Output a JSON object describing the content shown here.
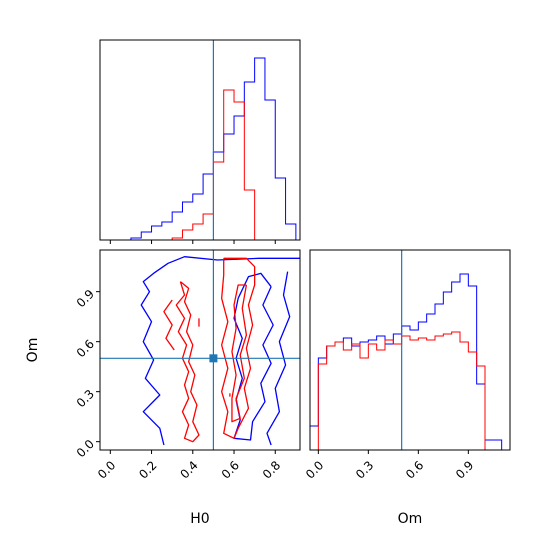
{
  "chart_data": {
    "type": "corner",
    "parameters": [
      "H0",
      "Om"
    ],
    "truth": {
      "H0": 0.5,
      "Om": 0.5
    },
    "colors": {
      "series_a": "#0000ff",
      "series_b": "#ff0000",
      "truth": "#1f77b4",
      "frame": "#000000"
    },
    "panels": [
      {
        "type": "histogram",
        "parameter": "H0",
        "xlim": [
          -0.05,
          0.92
        ],
        "ylim": [
          0,
          1.0
        ],
        "xticks": [
          0.0,
          0.2,
          0.4,
          0.6,
          0.8
        ],
        "show_tick_labels": false,
        "series": [
          {
            "color": "blue",
            "edges": [
              0.0,
              0.05,
              0.1,
              0.15,
              0.2,
              0.25,
              0.3,
              0.35,
              0.4,
              0.45,
              0.5,
              0.55,
              0.6,
              0.65,
              0.7,
              0.75,
              0.8,
              0.85,
              0.9
            ],
            "counts": [
              0.0,
              0.0,
              0.01,
              0.04,
              0.07,
              0.09,
              0.14,
              0.19,
              0.23,
              0.33,
              0.44,
              0.53,
              0.62,
              0.79,
              0.91,
              0.7,
              0.31,
              0.08
            ]
          },
          {
            "color": "red",
            "edges": [
              0.0,
              0.05,
              0.1,
              0.15,
              0.2,
              0.25,
              0.3,
              0.35,
              0.4,
              0.45,
              0.5,
              0.55,
              0.6,
              0.65,
              0.7,
              0.75,
              0.8,
              0.85,
              0.9
            ],
            "counts": [
              0.0,
              0.0,
              0.0,
              0.0,
              0.0,
              0.0,
              0.01,
              0.05,
              0.08,
              0.13,
              0.39,
              0.75,
              0.69,
              0.25,
              0.0,
              0.0,
              0.0,
              0.0
            ]
          }
        ]
      },
      {
        "type": "contour",
        "x_parameter": "H0",
        "y_parameter": "Om",
        "xlim": [
          -0.05,
          0.92
        ],
        "ylim": [
          -0.05,
          1.15
        ],
        "xticks": [
          0.0,
          0.2,
          0.4,
          0.6,
          0.8
        ],
        "yticks": [
          0.0,
          0.3,
          0.6,
          0.9
        ],
        "xtick_labels": [
          "0.0",
          "0.2",
          "0.4",
          "0.6",
          "0.8"
        ],
        "ytick_labels": [
          "0.0",
          "0.3",
          "0.6",
          "0.9"
        ],
        "xlabel": "H0",
        "ylabel": "Om",
        "series": [
          {
            "color": "blue",
            "contours": [
              [
                [
                  0.93,
                  1.1
                ],
                [
                  0.72,
                  1.1
                ],
                [
                  0.52,
                  1.09
                ],
                [
                  0.36,
                  1.11
                ],
                [
                  0.28,
                  1.07
                ],
                [
                  0.21,
                  1.01
                ],
                [
                  0.16,
                  0.96
                ],
                [
                  0.19,
                  0.9
                ],
                [
                  0.15,
                  0.82
                ],
                [
                  0.2,
                  0.72
                ],
                [
                  0.16,
                  0.6
                ],
                [
                  0.21,
                  0.49
                ],
                [
                  0.17,
                  0.38
                ],
                [
                  0.24,
                  0.28
                ],
                [
                  0.16,
                  0.18
                ],
                [
                  0.24,
                  0.08
                ],
                [
                  0.26,
                  -0.02
                ]
              ],
              [
                [
                  0.78,
                  0.93
                ],
                [
                  0.74,
                  0.82
                ],
                [
                  0.79,
                  0.7
                ],
                [
                  0.74,
                  0.58
                ],
                [
                  0.78,
                  0.47
                ],
                [
                  0.73,
                  0.35
                ],
                [
                  0.75,
                  0.24
                ],
                [
                  0.69,
                  0.12
                ],
                [
                  0.68,
                  0.01
                ],
                [
                  0.6,
                  0.02
                ],
                [
                  0.63,
                  0.13
                ],
                [
                  0.61,
                  0.25
                ],
                [
                  0.64,
                  0.38
                ],
                [
                  0.61,
                  0.5
                ],
                [
                  0.64,
                  0.62
                ],
                [
                  0.6,
                  0.74
                ],
                [
                  0.62,
                  0.86
                ],
                [
                  0.67,
                  0.99
                ],
                [
                  0.73,
                  1.01
                ],
                [
                  0.78,
                  0.93
                ]
              ],
              [
                [
                  0.86,
                  1.02
                ],
                [
                  0.84,
                  0.88
                ],
                [
                  0.87,
                  0.75
                ],
                [
                  0.82,
                  0.6
                ],
                [
                  0.85,
                  0.46
                ],
                [
                  0.8,
                  0.32
                ],
                [
                  0.82,
                  0.18
                ],
                [
                  0.76,
                  0.05
                ],
                [
                  0.78,
                  -0.02
                ]
              ]
            ]
          },
          {
            "color": "red",
            "contours": [
              [
                [
                  0.55,
                  1.1
                ],
                [
                  0.66,
                  1.1
                ],
                [
                  0.7,
                  1.05
                ],
                [
                  0.7,
                  0.94
                ],
                [
                  0.67,
                  0.82
                ],
                [
                  0.69,
                  0.7
                ],
                [
                  0.66,
                  0.56
                ],
                [
                  0.68,
                  0.44
                ],
                [
                  0.65,
                  0.32
                ],
                [
                  0.67,
                  0.2
                ],
                [
                  0.62,
                  0.08
                ],
                [
                  0.6,
                  0.02
                ],
                [
                  0.55,
                  0.05
                ],
                [
                  0.57,
                  0.18
                ],
                [
                  0.54,
                  0.3
                ],
                [
                  0.57,
                  0.44
                ],
                [
                  0.54,
                  0.58
                ],
                [
                  0.57,
                  0.72
                ],
                [
                  0.54,
                  0.86
                ],
                [
                  0.55,
                  1.0
                ],
                [
                  0.55,
                  1.1
                ]
              ],
              [
                [
                  0.66,
                  0.94
                ],
                [
                  0.64,
                  0.8
                ],
                [
                  0.66,
                  0.64
                ],
                [
                  0.63,
                  0.52
                ],
                [
                  0.65,
                  0.38
                ],
                [
                  0.61,
                  0.26
                ],
                [
                  0.63,
                  0.14
                ],
                [
                  0.59,
                  0.12
                ],
                [
                  0.59,
                  0.26
                ],
                [
                  0.61,
                  0.4
                ],
                [
                  0.59,
                  0.54
                ],
                [
                  0.61,
                  0.68
                ],
                [
                  0.6,
                  0.82
                ],
                [
                  0.62,
                  0.94
                ],
                [
                  0.66,
                  0.94
                ]
              ],
              [
                [
                  0.34,
                  0.96
                ],
                [
                  0.36,
                  0.88
                ],
                [
                  0.32,
                  0.82
                ],
                [
                  0.36,
                  0.74
                ],
                [
                  0.33,
                  0.66
                ],
                [
                  0.37,
                  0.58
                ],
                [
                  0.35,
                  0.5
                ],
                [
                  0.38,
                  0.42
                ],
                [
                  0.36,
                  0.34
                ],
                [
                  0.38,
                  0.26
                ],
                [
                  0.35,
                  0.18
                ],
                [
                  0.38,
                  0.1
                ],
                [
                  0.36,
                  0.02
                ],
                [
                  0.4,
                  0.0
                ],
                [
                  0.43,
                  0.04
                ],
                [
                  0.4,
                  0.12
                ],
                [
                  0.42,
                  0.22
                ],
                [
                  0.39,
                  0.3
                ],
                [
                  0.41,
                  0.4
                ],
                [
                  0.38,
                  0.48
                ],
                [
                  0.4,
                  0.58
                ],
                [
                  0.37,
                  0.66
                ],
                [
                  0.39,
                  0.76
                ],
                [
                  0.36,
                  0.84
                ],
                [
                  0.38,
                  0.92
                ],
                [
                  0.34,
                  0.96
                ]
              ],
              [
                [
                  0.3,
                  0.85
                ],
                [
                  0.26,
                  0.78
                ],
                [
                  0.3,
                  0.7
                ],
                [
                  0.27,
                  0.62
                ],
                [
                  0.31,
                  0.55
                ]
              ],
              [
                [
                  0.43,
                  0.74
                ],
                [
                  0.43,
                  0.69
                ]
              ],
              [
                [
                  0.58,
                  0.29
                ],
                [
                  0.58,
                  0.27
                ]
              ]
            ]
          }
        ]
      },
      {
        "type": "histogram",
        "parameter": "Om",
        "xlabel": "Om",
        "xlim": [
          -0.05,
          1.15
        ],
        "ylim": [
          0,
          1.0
        ],
        "xticks": [
          0.0,
          0.3,
          0.6,
          0.9
        ],
        "xtick_labels": [
          "0.0",
          "0.3",
          "0.6",
          "0.9"
        ],
        "series": [
          {
            "color": "blue",
            "edges": [
              -0.05,
              0.0,
              0.05,
              0.1,
              0.15,
              0.2,
              0.25,
              0.3,
              0.35,
              0.4,
              0.45,
              0.5,
              0.55,
              0.6,
              0.65,
              0.7,
              0.75,
              0.8,
              0.85,
              0.9,
              0.95,
              1.0,
              1.05,
              1.1
            ],
            "counts": [
              0.12,
              0.46,
              0.52,
              0.54,
              0.56,
              0.52,
              0.54,
              0.55,
              0.57,
              0.53,
              0.58,
              0.62,
              0.6,
              0.64,
              0.68,
              0.73,
              0.79,
              0.84,
              0.88,
              0.82,
              0.33,
              0.05,
              0.05
            ]
          },
          {
            "color": "red",
            "edges": [
              0.0,
              0.05,
              0.1,
              0.15,
              0.2,
              0.25,
              0.3,
              0.35,
              0.4,
              0.45,
              0.5,
              0.55,
              0.6,
              0.65,
              0.7,
              0.75,
              0.8,
              0.85,
              0.9,
              0.95,
              1.0
            ],
            "counts": [
              0.43,
              0.52,
              0.54,
              0.5,
              0.53,
              0.46,
              0.53,
              0.5,
              0.55,
              0.53,
              0.57,
              0.55,
              0.56,
              0.55,
              0.57,
              0.58,
              0.59,
              0.54,
              0.49,
              0.42
            ]
          }
        ]
      }
    ]
  }
}
